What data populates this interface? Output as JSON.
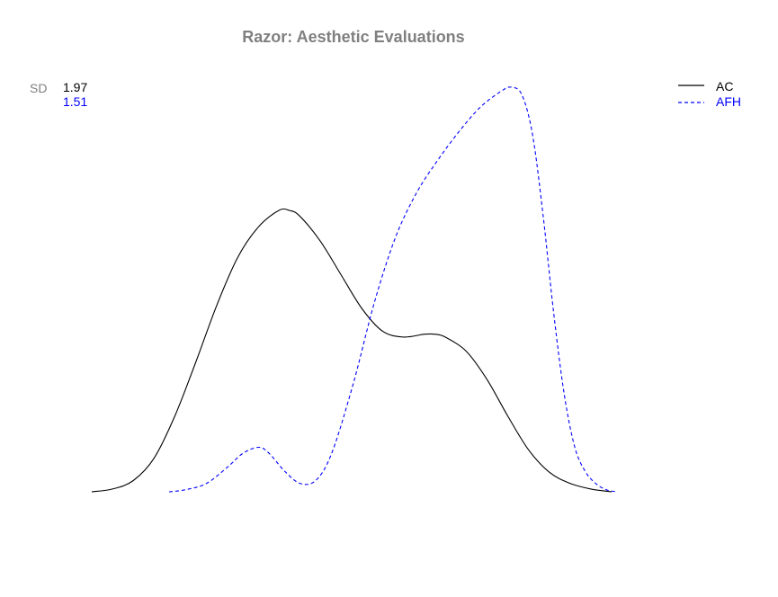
{
  "chart_data": {
    "type": "line",
    "title": "Razor: Aesthetic Evaluations",
    "xlabel": "",
    "ylabel": "",
    "axes_visible": false,
    "grid": false,
    "legend_position": "top-right",
    "sd": {
      "label": "SD",
      "values": [
        {
          "series": "AC",
          "text": "1.97"
        },
        {
          "series": "AFH",
          "text": "1.51"
        }
      ]
    },
    "xlim": [
      0,
      100
    ],
    "ylim": [
      0,
      1
    ],
    "series": [
      {
        "name": "AC",
        "color": "#000000",
        "dash": "solid",
        "x": [
          0,
          4,
          8,
          12,
          16,
          20,
          24,
          28,
          32,
          36,
          38,
          40,
          44,
          48,
          52,
          56,
          60,
          64,
          66,
          68,
          72,
          76,
          80,
          84,
          88,
          92,
          96,
          100
        ],
        "y": [
          0.0,
          0.01,
          0.04,
          0.12,
          0.27,
          0.46,
          0.66,
          0.83,
          0.94,
          1.0,
          1.0,
          0.98,
          0.89,
          0.77,
          0.65,
          0.57,
          0.55,
          0.56,
          0.56,
          0.55,
          0.5,
          0.4,
          0.27,
          0.15,
          0.07,
          0.03,
          0.01,
          0.0
        ]
      },
      {
        "name": "AFH",
        "color": "#0000ff",
        "dash": "dashed",
        "x": [
          15,
          18,
          22,
          26,
          29,
          32,
          34,
          37,
          40,
          43,
          46,
          50,
          54,
          58,
          62,
          66,
          70,
          74,
          78,
          80,
          82,
          84,
          86,
          88,
          90,
          92,
          94,
          96,
          98,
          100
        ],
        "y": [
          0.0,
          0.005,
          0.02,
          0.06,
          0.095,
          0.11,
          0.095,
          0.05,
          0.02,
          0.03,
          0.1,
          0.27,
          0.47,
          0.63,
          0.74,
          0.82,
          0.89,
          0.95,
          0.99,
          1.0,
          0.98,
          0.88,
          0.68,
          0.44,
          0.24,
          0.11,
          0.05,
          0.02,
          0.005,
          0.0
        ]
      }
    ],
    "colors": {
      "title": "#808080",
      "sd_label": "#808080",
      "AC": "#000000",
      "AFH": "#0000ff"
    }
  }
}
